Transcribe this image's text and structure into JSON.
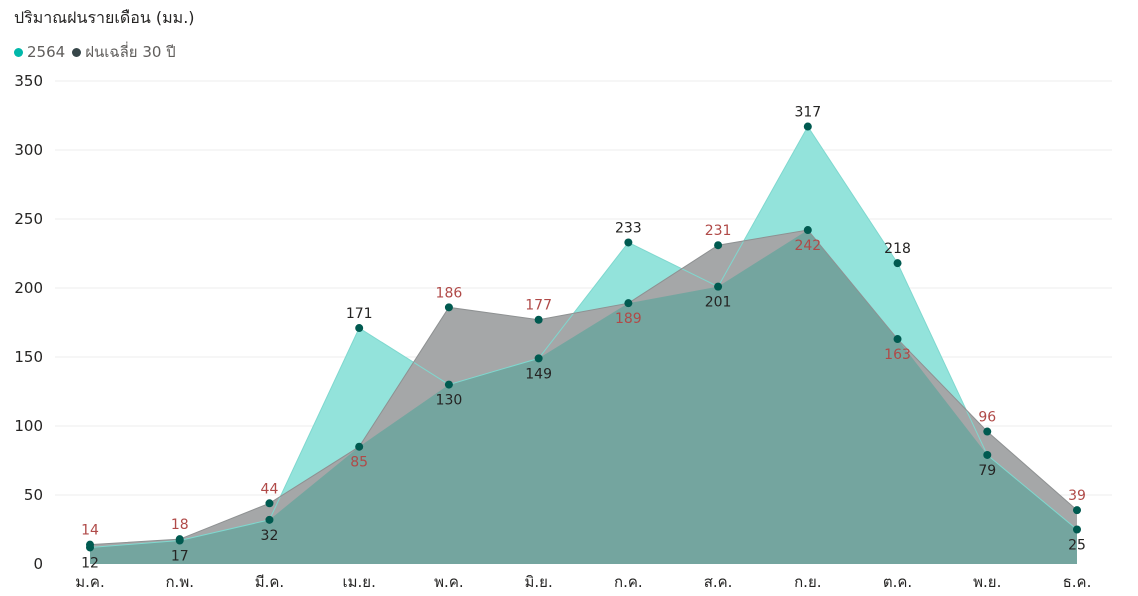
{
  "chart_data": {
    "type": "area",
    "title": "ปริมาณฝนรายเดือน (มม.)",
    "xlabel": "",
    "ylabel": "",
    "categories": [
      "ม.ค.",
      "ก.พ.",
      "มี.ค.",
      "เม.ย.",
      "พ.ค.",
      "มิ.ย.",
      "ก.ค.",
      "ส.ค.",
      "ก.ย.",
      "ต.ค.",
      "พ.ย.",
      "ธ.ค."
    ],
    "ylim": [
      0,
      350
    ],
    "yticks": [
      0,
      50,
      100,
      150,
      200,
      250,
      300,
      350
    ],
    "grid": true,
    "legend_position": "top-left",
    "series": [
      {
        "name": "2564",
        "color": "#01B8AA",
        "fill_color": "#93E3DB",
        "label_color": "#252423",
        "values": [
          12,
          17,
          32,
          171,
          130,
          149,
          233,
          201,
          317,
          218,
          79,
          25
        ]
      },
      {
        "name": "ฝนเฉลี่ย 30 ปี",
        "color": "#374649",
        "fill_color": "#A5A7A8",
        "label_color": "#B04A48",
        "values": [
          14,
          18,
          44,
          85,
          186,
          177,
          189,
          231,
          242,
          163,
          96,
          39
        ]
      }
    ],
    "overlap_color": "#74A59F",
    "marker_color": "#005A50"
  }
}
